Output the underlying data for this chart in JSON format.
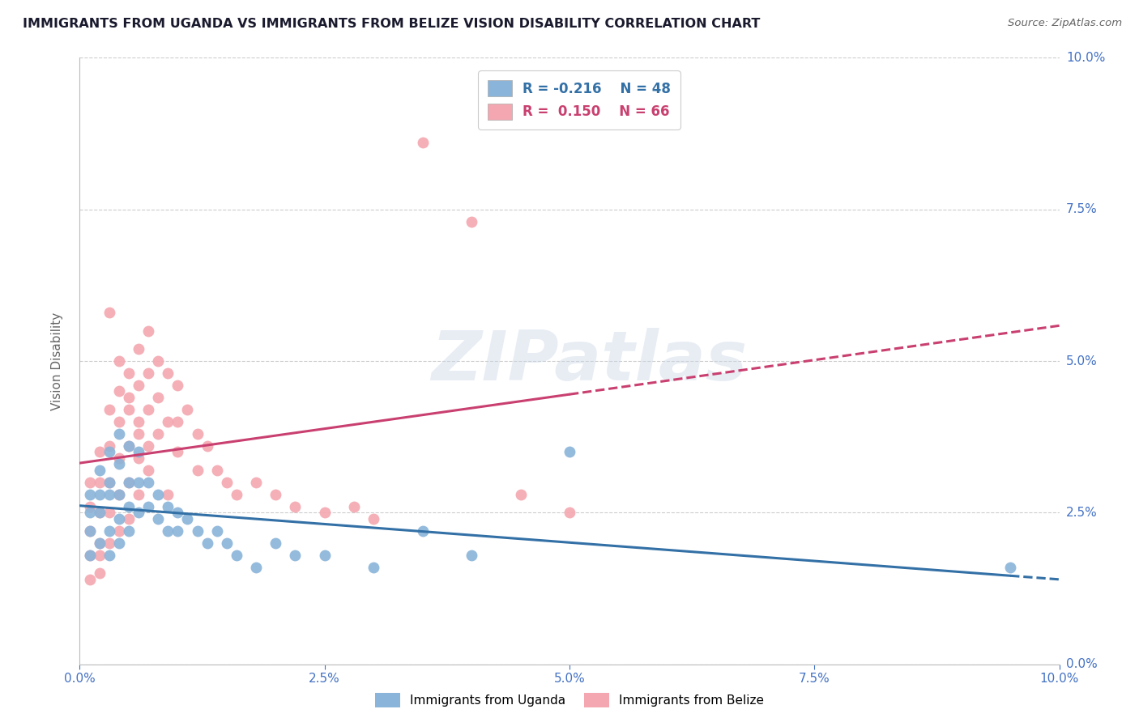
{
  "title": "IMMIGRANTS FROM UGANDA VS IMMIGRANTS FROM BELIZE VISION DISABILITY CORRELATION CHART",
  "source": "Source: ZipAtlas.com",
  "ylabel": "Vision Disability",
  "xlim": [
    0.0,
    0.1
  ],
  "ylim": [
    0.0,
    0.1
  ],
  "ytick_labels": [
    "0.0%",
    "2.5%",
    "5.0%",
    "7.5%",
    "10.0%"
  ],
  "ytick_positions": [
    0.0,
    0.025,
    0.05,
    0.075,
    0.1
  ],
  "xtick_positions": [
    0.0,
    0.025,
    0.05,
    0.075,
    0.1
  ],
  "xtick_labels": [
    "0.0%",
    "2.5%",
    "5.0%",
    "7.5%",
    "10.0%"
  ],
  "legend_r_uganda": "-0.216",
  "legend_n_uganda": "48",
  "legend_r_belize": " 0.150",
  "legend_n_belize": "66",
  "blue_color": "#8ab4d9",
  "pink_color": "#f4a7b0",
  "trendline_blue": "#3370a6",
  "trendline_pink": "#c94070",
  "watermark": "ZIPatlas",
  "background_color": "#ffffff",
  "uganda_x": [
    0.001,
    0.001,
    0.001,
    0.001,
    0.002,
    0.002,
    0.002,
    0.002,
    0.003,
    0.003,
    0.003,
    0.003,
    0.003,
    0.004,
    0.004,
    0.004,
    0.004,
    0.004,
    0.005,
    0.005,
    0.005,
    0.005,
    0.006,
    0.006,
    0.006,
    0.007,
    0.007,
    0.008,
    0.008,
    0.009,
    0.009,
    0.01,
    0.01,
    0.011,
    0.012,
    0.013,
    0.014,
    0.015,
    0.016,
    0.018,
    0.02,
    0.022,
    0.025,
    0.03,
    0.035,
    0.04,
    0.05,
    0.095
  ],
  "uganda_y": [
    0.028,
    0.025,
    0.022,
    0.018,
    0.032,
    0.028,
    0.025,
    0.02,
    0.035,
    0.03,
    0.028,
    0.022,
    0.018,
    0.038,
    0.033,
    0.028,
    0.024,
    0.02,
    0.036,
    0.03,
    0.026,
    0.022,
    0.035,
    0.03,
    0.025,
    0.03,
    0.026,
    0.028,
    0.024,
    0.026,
    0.022,
    0.025,
    0.022,
    0.024,
    0.022,
    0.02,
    0.022,
    0.02,
    0.018,
    0.016,
    0.02,
    0.018,
    0.018,
    0.016,
    0.022,
    0.018,
    0.035,
    0.016
  ],
  "belize_x": [
    0.001,
    0.001,
    0.001,
    0.001,
    0.001,
    0.002,
    0.002,
    0.002,
    0.002,
    0.002,
    0.002,
    0.003,
    0.003,
    0.003,
    0.003,
    0.003,
    0.004,
    0.004,
    0.004,
    0.004,
    0.004,
    0.005,
    0.005,
    0.005,
    0.005,
    0.005,
    0.006,
    0.006,
    0.006,
    0.006,
    0.006,
    0.007,
    0.007,
    0.007,
    0.007,
    0.008,
    0.008,
    0.008,
    0.009,
    0.009,
    0.01,
    0.01,
    0.01,
    0.011,
    0.012,
    0.012,
    0.013,
    0.014,
    0.015,
    0.016,
    0.018,
    0.02,
    0.022,
    0.025,
    0.028,
    0.03,
    0.035,
    0.04,
    0.045,
    0.05,
    0.003,
    0.004,
    0.005,
    0.006,
    0.007,
    0.009
  ],
  "belize_y": [
    0.03,
    0.026,
    0.022,
    0.018,
    0.014,
    0.035,
    0.03,
    0.025,
    0.02,
    0.018,
    0.015,
    0.042,
    0.036,
    0.03,
    0.025,
    0.02,
    0.045,
    0.04,
    0.034,
    0.028,
    0.022,
    0.048,
    0.042,
    0.036,
    0.03,
    0.024,
    0.052,
    0.046,
    0.04,
    0.034,
    0.028,
    0.055,
    0.048,
    0.042,
    0.036,
    0.05,
    0.044,
    0.038,
    0.048,
    0.04,
    0.046,
    0.04,
    0.035,
    0.042,
    0.038,
    0.032,
    0.036,
    0.032,
    0.03,
    0.028,
    0.03,
    0.028,
    0.026,
    0.025,
    0.026,
    0.024,
    0.086,
    0.073,
    0.028,
    0.025,
    0.058,
    0.05,
    0.044,
    0.038,
    0.032,
    0.028
  ]
}
